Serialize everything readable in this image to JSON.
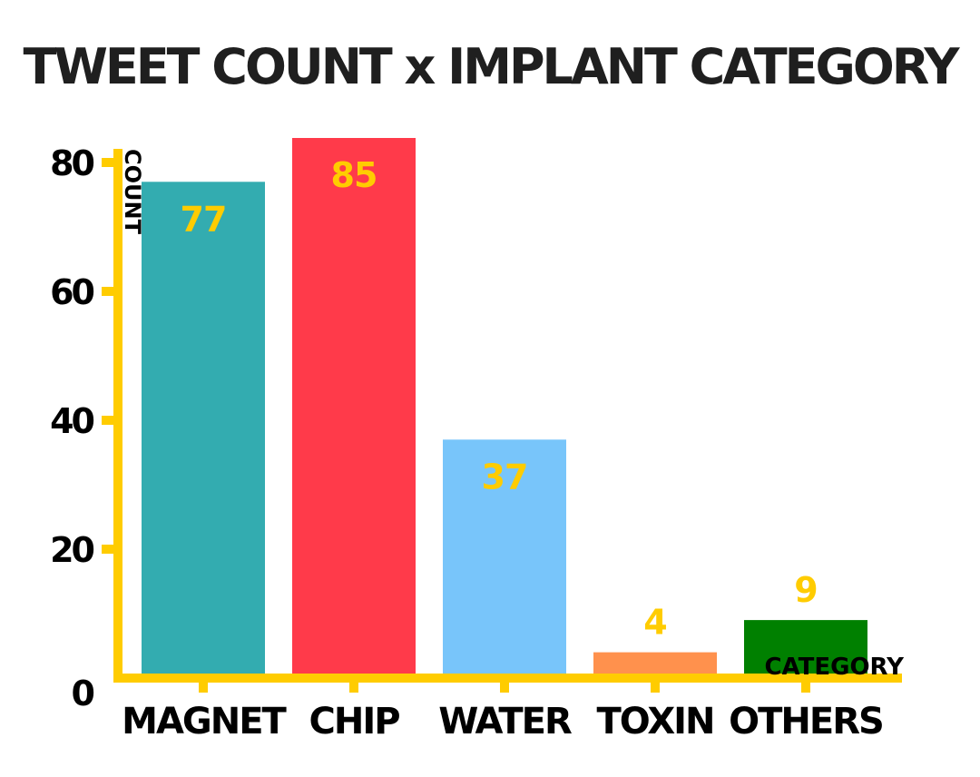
{
  "chart_data": {
    "type": "bar",
    "title": "TWEET COUNT x IMPLANT CATEGORY",
    "xlabel": "CATEGORY",
    "ylabel": "COUNT",
    "categories": [
      "MAGNET",
      "CHIP",
      "WATER",
      "TOXIN",
      "OTHERS"
    ],
    "values": [
      77,
      85,
      37,
      4,
      9
    ],
    "value_labels": [
      "77",
      "85",
      "37",
      "4",
      "9"
    ],
    "bar_colors": [
      "#33ACB0",
      "#FF3A4A",
      "#78C5FA",
      "#FF914D",
      "#008000"
    ],
    "yticks": [
      0,
      20,
      40,
      60,
      80
    ],
    "ylim": [
      0,
      85
    ],
    "grid": false,
    "axis_color": "#FFCC00",
    "label_color": "#FFCC00"
  }
}
